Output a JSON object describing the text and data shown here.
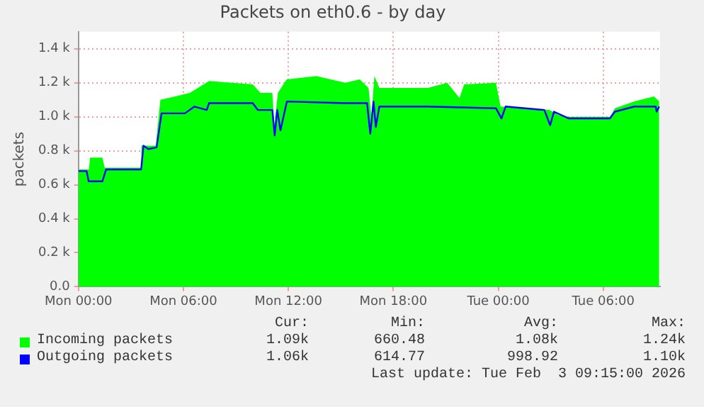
{
  "chart_data": {
    "type": "area",
    "title": "Packets on eth0.6 - by day",
    "ylabel": "packets",
    "xlim": [
      "2026-02-02T00:00",
      "2026-02-03T09:15"
    ],
    "xticks": [
      {
        "value": "2026-02-02T00:00",
        "label": "Mon 00:00"
      },
      {
        "value": "2026-02-02T06:00",
        "label": "Mon 06:00"
      },
      {
        "value": "2026-02-02T12:00",
        "label": "Mon 12:00"
      },
      {
        "value": "2026-02-02T18:00",
        "label": "Mon 18:00"
      },
      {
        "value": "2026-02-03T00:00",
        "label": "Tue 00:00"
      },
      {
        "value": "2026-02-03T06:00",
        "label": "Tue 06:00"
      }
    ],
    "ylim": [
      0,
      1500
    ],
    "yticks": [
      {
        "value": 0,
        "label": "0.0"
      },
      {
        "value": 200,
        "label": "0.2 k"
      },
      {
        "value": 400,
        "label": "0.4 k"
      },
      {
        "value": 600,
        "label": "0.6 k"
      },
      {
        "value": 800,
        "label": "0.8 k"
      },
      {
        "value": 1000,
        "label": "1.0 k"
      },
      {
        "value": 1200,
        "label": "1.2 k"
      },
      {
        "value": 1400,
        "label": "1.4 k"
      }
    ],
    "grid": true,
    "legend": "bottom",
    "series": [
      {
        "name": "Incoming packets",
        "type": "area",
        "color": "#00ff00",
        "x": [
          "2026-02-02T00:00",
          "2026-02-02T00:36",
          "2026-02-02T00:40",
          "2026-02-02T01:22",
          "2026-02-02T01:30",
          "2026-02-02T03:35",
          "2026-02-02T03:36",
          "2026-02-02T04:25",
          "2026-02-02T04:41",
          "2026-02-02T06:22",
          "2026-02-02T07:28",
          "2026-02-02T09:58",
          "2026-02-02T10:24",
          "2026-02-02T11:05",
          "2026-02-02T11:12",
          "2026-02-02T11:24",
          "2026-02-02T11:54",
          "2026-02-02T13:36",
          "2026-02-02T15:15",
          "2026-02-02T16:05",
          "2026-02-02T16:35",
          "2026-02-02T16:45",
          "2026-02-02T16:55",
          "2026-02-02T17:12",
          "2026-02-02T19:58",
          "2026-02-02T21:05",
          "2026-02-02T21:47",
          "2026-02-02T22:03",
          "2026-02-02T23:52",
          "2026-02-03T00:08",
          "2026-02-03T02:55",
          "2026-02-03T03:28",
          "2026-02-03T04:02",
          "2026-02-03T06:23",
          "2026-02-03T06:40",
          "2026-02-03T07:47",
          "2026-02-03T08:54",
          "2026-02-03T09:12"
        ],
        "values": [
          690,
          690,
          760,
          760,
          700,
          700,
          830,
          830,
          1100,
          1140,
          1210,
          1190,
          1140,
          1140,
          950,
          1140,
          1220,
          1240,
          1200,
          1220,
          1170,
          1000,
          1240,
          1170,
          1170,
          1200,
          1110,
          1190,
          1200,
          1060,
          1040,
          1010,
          1000,
          1000,
          1050,
          1090,
          1120,
          1090
        ]
      },
      {
        "name": "Outgoing packets",
        "type": "line",
        "color": "#0000ff",
        "x": [
          "2026-02-02T00:00",
          "2026-02-02T00:28",
          "2026-02-02T00:35",
          "2026-02-02T01:22",
          "2026-02-02T01:35",
          "2026-02-02T03:35",
          "2026-02-02T03:43",
          "2026-02-02T04:00",
          "2026-02-02T04:28",
          "2026-02-02T04:45",
          "2026-02-02T06:05",
          "2026-02-02T06:38",
          "2026-02-02T07:20",
          "2026-02-02T07:28",
          "2026-02-02T09:58",
          "2026-02-02T10:15",
          "2026-02-02T11:05",
          "2026-02-02T11:13",
          "2026-02-02T11:22",
          "2026-02-02T11:33",
          "2026-02-02T11:55",
          "2026-02-02T15:15",
          "2026-02-02T16:30",
          "2026-02-02T16:41",
          "2026-02-02T16:52",
          "2026-02-02T17:00",
          "2026-02-02T17:12",
          "2026-02-02T19:58",
          "2026-02-02T23:52",
          "2026-02-03T00:11",
          "2026-02-03T00:25",
          "2026-02-03T02:38",
          "2026-02-03T02:58",
          "2026-02-03T03:11",
          "2026-02-03T04:02",
          "2026-02-03T06:23",
          "2026-02-03T06:40",
          "2026-02-03T07:47",
          "2026-02-03T09:00",
          "2026-02-03T09:03",
          "2026-02-03T09:12"
        ],
        "values": [
          680,
          680,
          620,
          620,
          690,
          690,
          830,
          810,
          820,
          1020,
          1020,
          1060,
          1040,
          1080,
          1080,
          1040,
          1040,
          890,
          1040,
          920,
          1090,
          1080,
          1080,
          900,
          1090,
          940,
          1060,
          1060,
          1050,
          990,
          1060,
          1040,
          950,
          1030,
          990,
          990,
          1030,
          1060,
          1060,
          1030,
          1060
        ]
      }
    ],
    "annotations": [
      "Cur:",
      "Min:",
      "Avg:",
      "Max:",
      "1.09k",
      "660.48",
      "1.08k",
      "1.24k",
      "1.06k",
      "614.77",
      "998.92",
      "1.10k",
      "Last update: Tue Feb  3 09:15:00 2026"
    ]
  }
}
